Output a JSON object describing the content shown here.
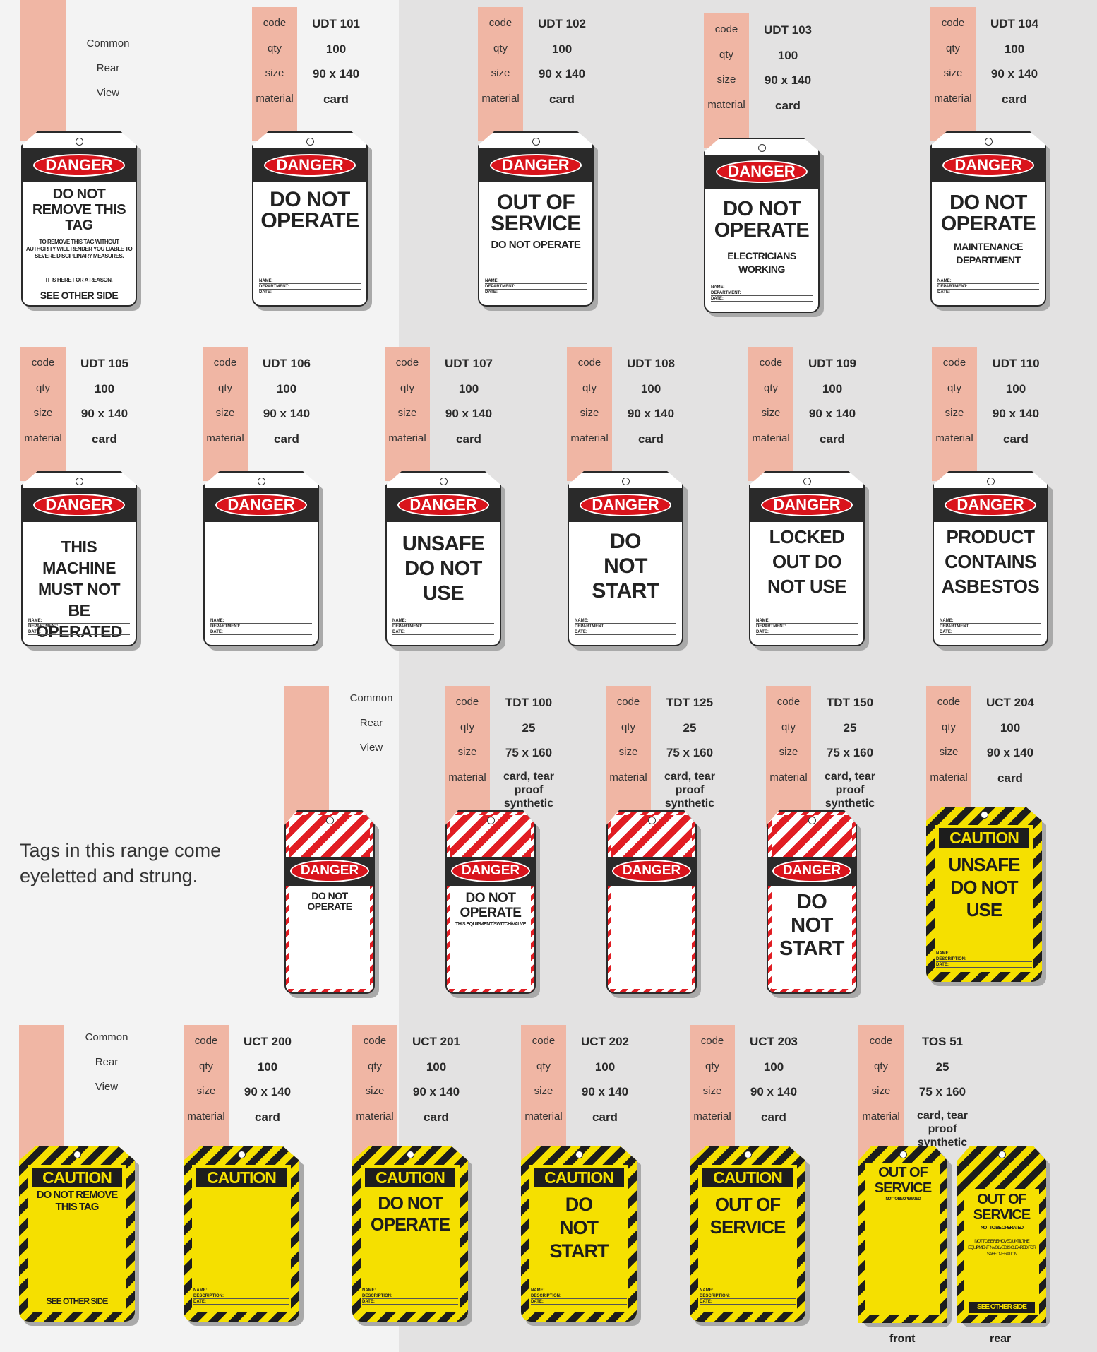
{
  "labels": {
    "code": "code",
    "qty": "qty",
    "size": "size",
    "material": "material"
  },
  "common_rear": [
    "Common",
    "Rear",
    "View"
  ],
  "products": {
    "udt101": {
      "code": "UDT 101",
      "qty": "100",
      "size": "90 x 140",
      "material": "card"
    },
    "udt102": {
      "code": "UDT 102",
      "qty": "100",
      "size": "90 x 140",
      "material": "card"
    },
    "udt103": {
      "code": "UDT 103",
      "qty": "100",
      "size": "90 x 140",
      "material": "card"
    },
    "udt104": {
      "code": "UDT 104",
      "qty": "100",
      "size": "90 x 140",
      "material": "card"
    },
    "udt105": {
      "code": "UDT 105",
      "qty": "100",
      "size": "90 x 140",
      "material": "card"
    },
    "udt106": {
      "code": "UDT 106",
      "qty": "100",
      "size": "90 x 140",
      "material": "card"
    },
    "udt107": {
      "code": "UDT 107",
      "qty": "100",
      "size": "90 x 140",
      "material": "card"
    },
    "udt108": {
      "code": "UDT 108",
      "qty": "100",
      "size": "90 x 140",
      "material": "card"
    },
    "udt109": {
      "code": "UDT 109",
      "qty": "100",
      "size": "90 x 140",
      "material": "card"
    },
    "udt110": {
      "code": "UDT 110",
      "qty": "100",
      "size": "90 x 140",
      "material": "card"
    },
    "tdt100": {
      "code": "TDT 100",
      "qty": "25",
      "size": "75 x 160",
      "material": "card, tear proof synthetic"
    },
    "tdt125": {
      "code": "TDT 125",
      "qty": "25",
      "size": "75 x 160",
      "material": "card, tear proof synthetic"
    },
    "tdt150": {
      "code": "TDT 150",
      "qty": "25",
      "size": "75 x 160",
      "material": "card, tear proof synthetic"
    },
    "uct204": {
      "code": "UCT 204",
      "qty": "100",
      "size": "90 x 140",
      "material": "card"
    },
    "uct200": {
      "code": "UCT 200",
      "qty": "100",
      "size": "90 x 140",
      "material": "card"
    },
    "uct201": {
      "code": "UCT 201",
      "qty": "100",
      "size": "90 x 140",
      "material": "card"
    },
    "uct202": {
      "code": "UCT 202",
      "qty": "100",
      "size": "90 x 140",
      "material": "card"
    },
    "uct203": {
      "code": "UCT 203",
      "qty": "100",
      "size": "90 x 140",
      "material": "card"
    },
    "tos51": {
      "code": "TOS 51",
      "qty": "25",
      "size": "75 x 160",
      "material": "card, tear proof synthetic"
    }
  },
  "tags": {
    "danger": "DANGER",
    "caution": "CAUTION",
    "rear1_title": "DO NOT REMOVE THIS TAG",
    "rear1_body": "TO REMOVE THIS TAG WITHOUT AUTHORITY WILL RENDER YOU LIABLE TO SEVERE DISCIPLINARY MEASURES.",
    "rear1_reason": "IT IS HERE FOR A REASON.",
    "see_other_side": "SEE OTHER SIDE",
    "t101": "DO NOT OPERATE",
    "t102": "OUT OF SERVICE",
    "t102_sub": "DO NOT OPERATE",
    "t103": "DO NOT OPERATE",
    "t103_sub": "ELECTRICIANS WORKING",
    "t104": "DO NOT OPERATE",
    "t104_sub": "MAINTENANCE DEPARTMENT",
    "t105": "THIS MACHINE MUST NOT BE OPERATED",
    "t107": "UNSAFE DO NOT USE",
    "t108": "DO NOT START",
    "t109": "LOCKED OUT DO NOT USE",
    "t110": "PRODUCT CONTAINS ASBESTOS",
    "tdt_rear_title": "DO NOT OPERATE",
    "tdt100": "DO NOT OPERATE",
    "tdt100_sub": "THIS EQUIPMENT/SWITCH/VALVE",
    "tdt150": "DO NOT START",
    "uct204": "UNSAFE DO NOT USE",
    "crear_title": "DO NOT REMOVE THIS TAG",
    "uct201": "DO NOT OPERATE",
    "uct202": "DO NOT START",
    "uct203": "OUT OF SERVICE",
    "tos_title": "OUT OF SERVICE",
    "tos_sub": "NOT TO BE OPERATED",
    "tos_rear_body": "NOT TO BE REMOVED UNTIL THE EQUIPMENT INVOLVED IS CLEARED FOR SAFE OPERATION",
    "field_name": "NAME:",
    "field_department": "DEPARTMENT:",
    "field_date": "DATE:",
    "field_description": "DESCRIPTION:"
  },
  "caption": "Tags in this range come eyeletted and strung.",
  "front_label": "front",
  "rear_label": "rear"
}
